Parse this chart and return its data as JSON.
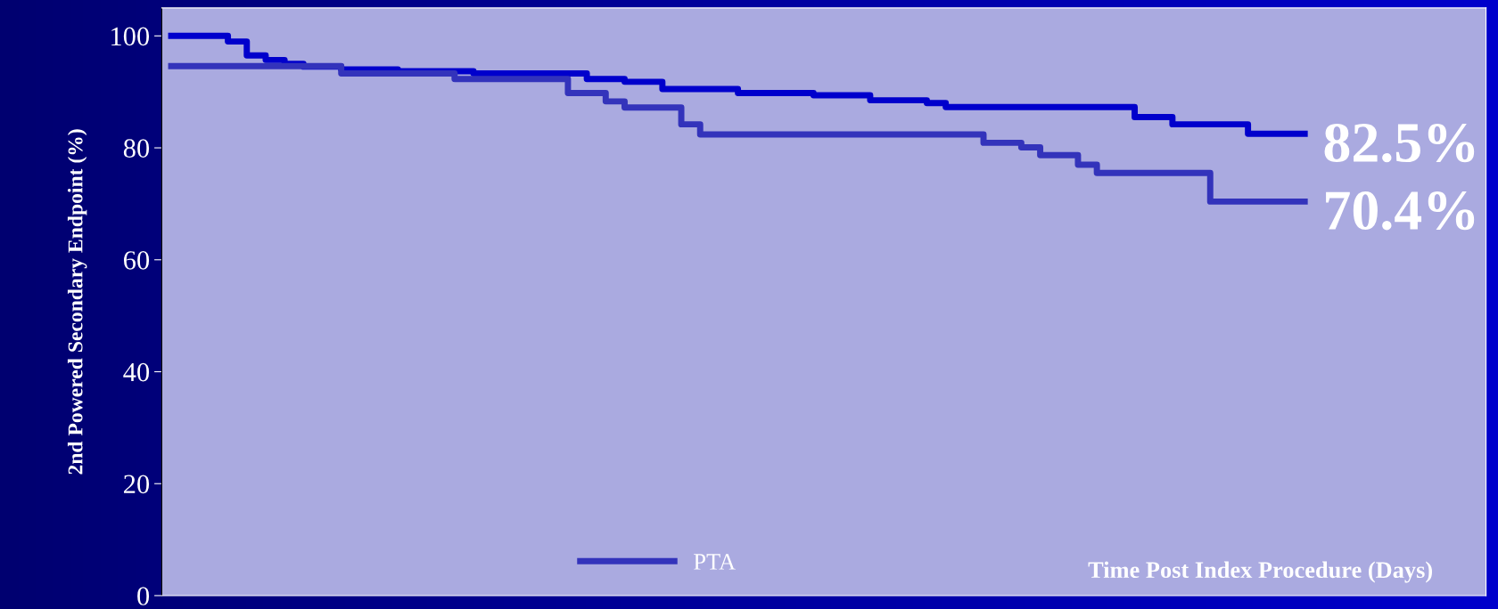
{
  "chart_data": {
    "type": "step",
    "ylabel": "2nd Powered Secondary Endpoint (%)",
    "xlabel": "Time Post Index Procedure (Days)",
    "categories": [
      null,
      null,
      null,
      null,
      null,
      null,
      null,
      null,
      null,
      null,
      null,
      null,
      null,
      null,
      null,
      null,
      null,
      null,
      null,
      null,
      null,
      null,
      null,
      null,
      null,
      null,
      null,
      null,
      null,
      null,
      null,
      null,
      null,
      null,
      null,
      null,
      null,
      null,
      null,
      null,
      null,
      null,
      null,
      null,
      null,
      null,
      null,
      null,
      null,
      null,
      null,
      null,
      null,
      null,
      null,
      null,
      null,
      null,
      null,
      null,
      null
    ],
    "series": [
      {
        "color": "#0000cc",
        "values": [
          100,
          100,
          100,
          99,
          96.5,
          95.7,
          95,
          94.5,
          94.5,
          94,
          94,
          94,
          93.7,
          93.7,
          93.7,
          93.7,
          93.3,
          93.3,
          93.3,
          93.3,
          93.3,
          93.3,
          92.3,
          92.3,
          91.8,
          91.8,
          90.5,
          90.5,
          90.5,
          90.5,
          89.8,
          89.8,
          89.8,
          89.8,
          89.4,
          89.4,
          89.4,
          88.5,
          88.5,
          88.5,
          88,
          87.3,
          87.3,
          87.3,
          87.3,
          87.3,
          87.3,
          87.3,
          87.3,
          87.3,
          87.3,
          85.5,
          85.5,
          84.2,
          84.2,
          84.2,
          84.2,
          82.5,
          82.5,
          82.5,
          82.5
        ]
      },
      {
        "name": "PTA",
        "color": "#3333bb",
        "values": [
          94.6,
          94.6,
          94.6,
          94.6,
          94.6,
          94.6,
          94.6,
          94.6,
          94.6,
          93.3,
          93.3,
          93.3,
          93.3,
          93.3,
          93.3,
          92.3,
          92.3,
          92.3,
          92.3,
          92.3,
          92.3,
          89.8,
          89.8,
          88.3,
          87.2,
          87.2,
          87.2,
          84.2,
          82.4,
          82.4,
          82.4,
          82.4,
          82.4,
          82.4,
          82.4,
          82.4,
          82.4,
          82.4,
          82.4,
          82.4,
          82.4,
          82.4,
          82.4,
          80.9,
          80.9,
          80.1,
          78.7,
          78.7,
          77,
          75.5,
          75.5,
          75.5,
          75.5,
          75.5,
          75.5,
          70.4,
          70.4,
          70.4,
          70.4,
          70.4,
          70.4
        ]
      }
    ],
    "ylim": [
      0,
      105
    ],
    "yticks": [
      0,
      20,
      40,
      60,
      80,
      100
    ],
    "tick_labels": "y",
    "grid": false,
    "legend": "bottom left",
    "line_style": "solid",
    "marker": "none",
    "annotations": [
      "82.5%",
      "70.4%"
    ]
  }
}
